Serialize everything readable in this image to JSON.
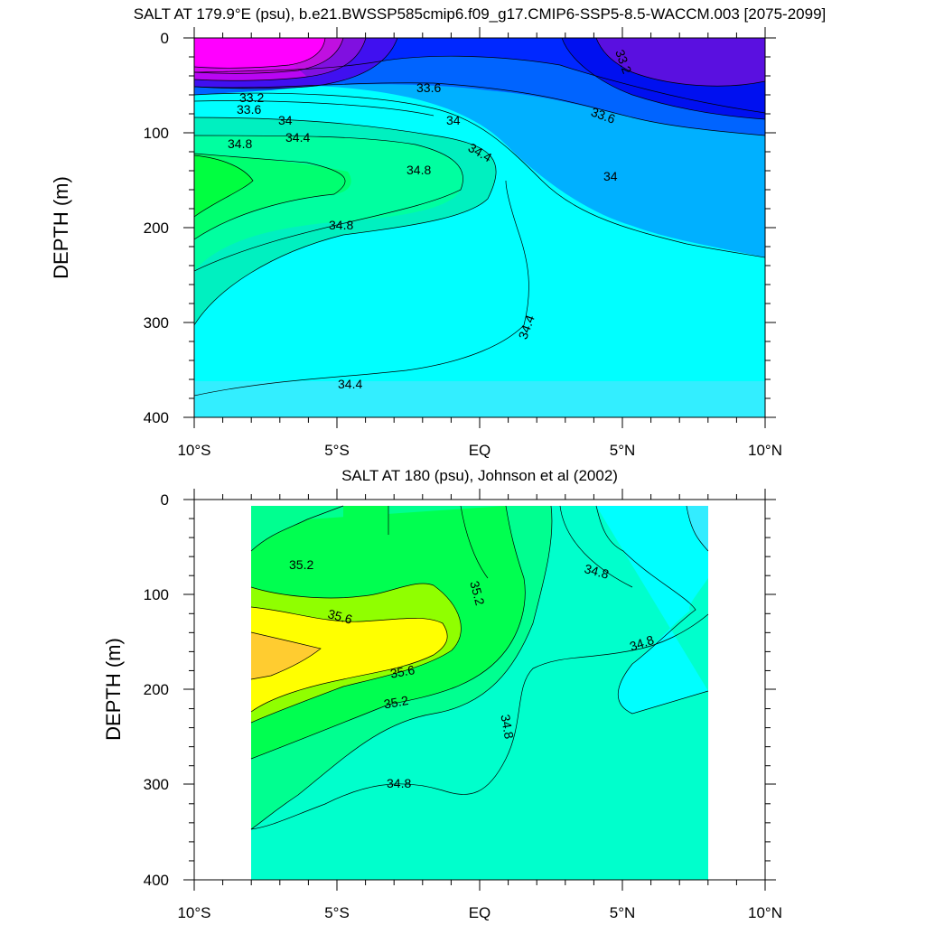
{
  "chart_data": [
    {
      "type": "contour",
      "title": "SALT AT 179.9°E (psu), b.e21.BWSSP585cmip6.f09_g17.CMIP6-SSP5-8.5-WACCM.003 [2075-2099]",
      "ylabel": "DEPTH (m)",
      "xlabel": "",
      "xlim": [
        -10,
        10
      ],
      "ylim": [
        400,
        0
      ],
      "x_ticks": [
        "10°S",
        "5°S",
        "EQ",
        "5°N",
        "10°N"
      ],
      "y_ticks": [
        "0",
        "100",
        "200",
        "300",
        "400"
      ],
      "contour_labels": [
        "33.2",
        "33.2",
        "33.6",
        "33.6",
        "33.6",
        "34",
        "34",
        "34",
        "34.4",
        "34.4",
        "34.4",
        "34.4",
        "34.8",
        "34.8",
        "34.8"
      ],
      "series": [
        {
          "level": 32.6,
          "color": "#ff00ff",
          "region": "fresh pool near surface, 9.5°S–4.5°S, 0–40 m"
        },
        {
          "level": 33.2,
          "color": "#5a0ee0",
          "region": "fresh surface layer, 3°N–10°N, 0–80 m"
        },
        {
          "level": 33.6,
          "color": "#0050ff",
          "region": "surface layer 30–90 m"
        },
        {
          "level": 34.0,
          "color": "#00b0ff",
          "region": "thermocline 90–230 m north of equator"
        },
        {
          "level": 34.4,
          "color": "#00ffff",
          "region": "deep layer below 200 m"
        },
        {
          "level": 34.8,
          "color": "#00ffb0",
          "region": "subsurface salinity maximum 120–300 m, 10°S–EQ"
        },
        {
          "level": 35.2,
          "color": "#00ff50",
          "region": "core of salinity maximum near 10°S, 150 m"
        }
      ]
    },
    {
      "type": "contour",
      "title": "SALT AT 180 (psu), Johnson et al (2002)",
      "ylabel": "DEPTH (m)",
      "xlabel": "",
      "xlim": [
        -10,
        10
      ],
      "ylim": [
        400,
        0
      ],
      "data_xlim": [
        -8,
        8
      ],
      "data_ylim": [
        400,
        10
      ],
      "x_ticks": [
        "10°S",
        "5°S",
        "EQ",
        "5°N",
        "10°N"
      ],
      "y_ticks": [
        "0",
        "100",
        "200",
        "300",
        "400"
      ],
      "contour_labels": [
        "35.2",
        "35.2",
        "35.2",
        "35.6",
        "35.6",
        "34.8",
        "34.8",
        "34.8",
        "34.8"
      ],
      "series": [
        {
          "level": 34.4,
          "color": "#00ffff",
          "region": "north of 3°N, 0–200 m"
        },
        {
          "level": 34.8,
          "color": "#00ffc0",
          "region": "background 0–400 m"
        },
        {
          "level": 35.0,
          "color": "#00ff90",
          "region": "100–350 m south of equator"
        },
        {
          "level": 35.2,
          "color": "#00ff50",
          "region": "surface to 250 m, 7°S–1°N"
        },
        {
          "level": 35.4,
          "color": "#90ff00",
          "region": "90–240 m, 8°S–2°S"
        },
        {
          "level": 35.6,
          "color": "#ffff00",
          "region": "110–210 m, 8°S–1.5°S"
        },
        {
          "level": 36.0,
          "color": "#ffcc30",
          "region": "core 140–190 m near 7°S"
        }
      ]
    }
  ]
}
